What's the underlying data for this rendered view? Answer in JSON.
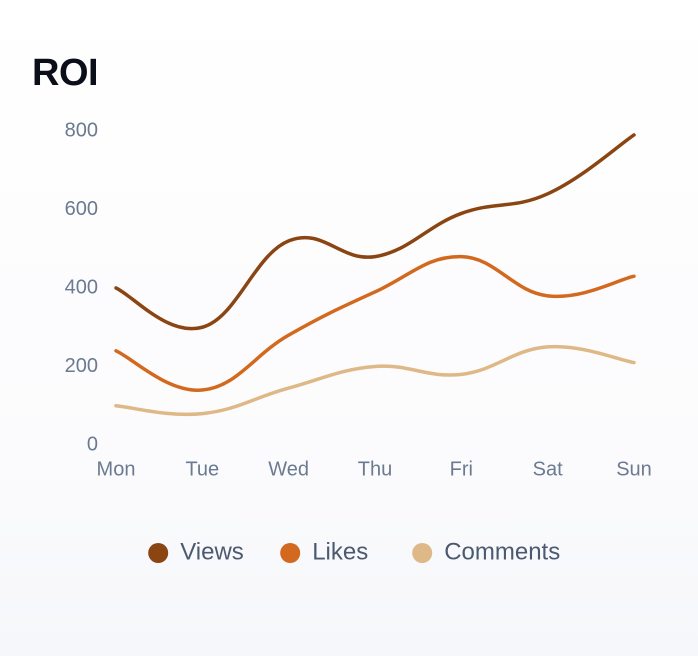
{
  "chart_data": {
    "type": "line",
    "title": "ROI",
    "categories": [
      "Mon",
      "Tue",
      "Wed",
      "Thu",
      "Fri",
      "Sat",
      "Sun"
    ],
    "ylim": [
      0,
      800
    ],
    "yticks": [
      0,
      200,
      400,
      600,
      800
    ],
    "ytick_labels": [
      "0",
      "200",
      "400",
      "600",
      "800"
    ],
    "grid": false,
    "legend": "bottom",
    "series": [
      {
        "name": "Views",
        "color": "#8b4513",
        "values": [
          400,
          300,
          520,
          480,
          590,
          640,
          790
        ]
      },
      {
        "name": "Likes",
        "color": "#d2691e",
        "values": [
          240,
          140,
          280,
          390,
          480,
          380,
          430
        ]
      },
      {
        "name": "Comments",
        "color": "#deb887",
        "values": [
          100,
          80,
          145,
          200,
          180,
          250,
          210
        ]
      }
    ]
  }
}
